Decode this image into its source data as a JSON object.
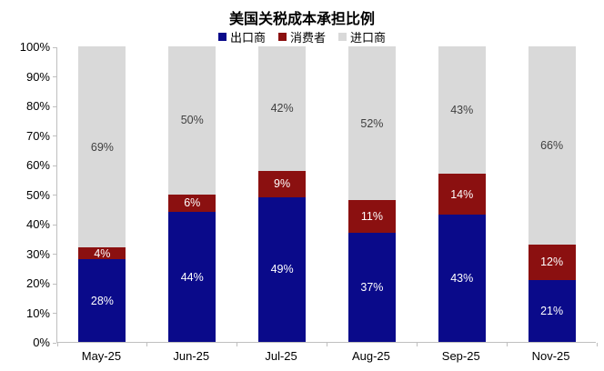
{
  "title": "美国关税成本承担比例",
  "legend": {
    "items": [
      {
        "label": "出口商",
        "color": "#0A0A8A"
      },
      {
        "label": "消费者",
        "color": "#8B1010"
      },
      {
        "label": "进口商",
        "color": "#D9D9D9"
      }
    ]
  },
  "chart_data": {
    "type": "bar",
    "stacked": true,
    "title": "美国关税成本承担比例",
    "categories": [
      "May-25",
      "Jun-25",
      "Jul-25",
      "Aug-25",
      "Sep-25",
      "Nov-25"
    ],
    "series": [
      {
        "name": "出口商",
        "key": "exporter",
        "color": "#0A0A8A",
        "label_style": "on-dark",
        "values": [
          28,
          44,
          49,
          37,
          43,
          21
        ]
      },
      {
        "name": "消费者",
        "key": "consumer",
        "color": "#8B1010",
        "label_style": "on-dark",
        "values": [
          4,
          6,
          9,
          11,
          14,
          12
        ]
      },
      {
        "name": "进口商",
        "key": "importer",
        "color": "#D9D9D9",
        "label_style": "on-light",
        "values": [
          69,
          50,
          42,
          52,
          43,
          66
        ]
      }
    ],
    "value_suffix": "%",
    "ylabel": "",
    "xlabel": "",
    "ylim": [
      0,
      100
    ],
    "y_ticks": [
      "0%",
      "10%",
      "20%",
      "30%",
      "40%",
      "50%",
      "60%",
      "70%",
      "80%",
      "90%",
      "100%"
    ],
    "grid": false,
    "legend_position": "top",
    "axis_color": "#bfbfbf"
  }
}
